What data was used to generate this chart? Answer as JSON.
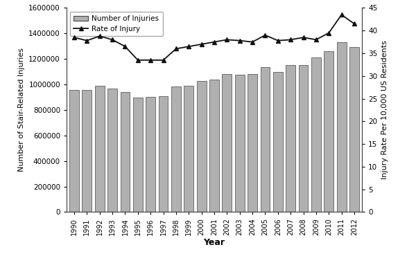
{
  "years": [
    1990,
    1991,
    1992,
    1993,
    1994,
    1995,
    1996,
    1997,
    1998,
    1999,
    2000,
    2001,
    2002,
    2003,
    2004,
    2005,
    2006,
    2007,
    2008,
    2009,
    2010,
    2011,
    2012
  ],
  "injuries": [
    955000,
    955000,
    990000,
    970000,
    940000,
    900000,
    905000,
    910000,
    985000,
    990000,
    1030000,
    1040000,
    1080000,
    1075000,
    1080000,
    1135000,
    1100000,
    1150000,
    1150000,
    1210000,
    1260000,
    1330000,
    1295000
  ],
  "rate": [
    38.5,
    37.8,
    38.8,
    38.0,
    36.5,
    33.5,
    33.5,
    33.5,
    36.0,
    36.5,
    37.0,
    37.5,
    38.0,
    37.8,
    37.5,
    39.0,
    37.8,
    38.0,
    38.5,
    38.0,
    39.5,
    43.5,
    41.5
  ],
  "bar_color": "#b0b0b0",
  "bar_edgecolor": "#444444",
  "line_color": "#111111",
  "marker": "^",
  "ylabel_left": "Number of Stair-Related Injuries",
  "ylabel_right": "Injury Rate Per 10,000 US Residents",
  "xlabel": "Year",
  "ylim_left": [
    0,
    1600000
  ],
  "ylim_right": [
    0,
    45
  ],
  "yticks_left": [
    0,
    200000,
    400000,
    600000,
    800000,
    1000000,
    1200000,
    1400000,
    1600000
  ],
  "yticks_right": [
    0,
    5,
    10,
    15,
    20,
    25,
    30,
    35,
    40,
    45
  ],
  "legend_labels": [
    "Number of Injuries",
    "Rate of Injury"
  ],
  "bg_color": "#ffffff"
}
